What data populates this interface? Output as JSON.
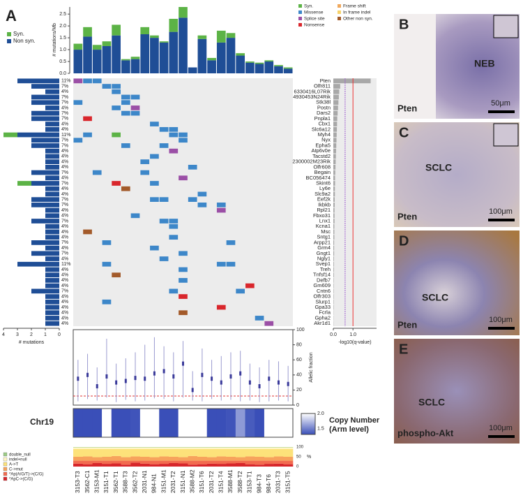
{
  "panelA": {
    "letter": "A",
    "samples": [
      "3153-T3",
      "3562-C1",
      "3153-M1",
      "3151-T1",
      "3562-T1",
      "3588-T3",
      "3562-T2",
      "2031-N1",
      "984-N1",
      "3151-M1",
      "2031-T2",
      "3151-N1",
      "3588-M2",
      "3151-T6",
      "2031-T2",
      "3151-T4",
      "3588-M1",
      "3588-T2",
      "3153-T1",
      "984-T3",
      "984-T6",
      "2031-T3",
      "3151-T5"
    ],
    "rate": {
      "ylabel": "# mutations/Mb",
      "ylim": [
        0,
        2.8
      ],
      "yticks": [
        {
          "value": 0,
          "label": "0.0"
        },
        {
          "value": 0.5,
          "label": "0.5"
        },
        {
          "value": 1,
          "label": "1.0"
        },
        {
          "value": 1.5,
          "label": "1.5"
        },
        {
          "value": 2,
          "label": "2.0"
        },
        {
          "value": 2.5,
          "label": "2.5"
        }
      ],
      "series": [
        {
          "name": "Non syn.",
          "color": "#1f4e96",
          "values": [
            1.0,
            1.55,
            1.0,
            1.15,
            1.6,
            0.55,
            0.6,
            1.65,
            1.5,
            1.3,
            1.75,
            2.35,
            0.25,
            1.45,
            0.55,
            1.3,
            1.5,
            0.75,
            0.45,
            0.4,
            0.5,
            0.3,
            0.2
          ]
        },
        {
          "name": "Syn.",
          "color": "#5cb346",
          "values": [
            0.25,
            0.4,
            0.2,
            0.2,
            0.45,
            0.05,
            0.1,
            0.3,
            0.1,
            0.05,
            0.55,
            0.45,
            0.0,
            0.15,
            0.1,
            0.5,
            0.2,
            0.1,
            0.05,
            0.05,
            0.05,
            0.05,
            0.05
          ]
        }
      ]
    },
    "types": [
      {
        "name": "Syn.",
        "color": "#5cb346"
      },
      {
        "name": "Missense",
        "color": "#3d87c9"
      },
      {
        "name": "Splice site",
        "color": "#9b4fa6"
      },
      {
        "name": "Nonsense",
        "color": "#d9262c"
      },
      {
        "name": "Frame shift",
        "color": "#f0a85c"
      },
      {
        "name": "In frame indel",
        "color": "#f7d36b"
      },
      {
        "name": "Other non syn.",
        "color": "#a35a2a"
      }
    ],
    "genes": [
      {
        "name": "Pten",
        "pct": "11%",
        "count": 3,
        "syn": 0,
        "q": 1.9,
        "cells": [
          [
            0,
            2
          ],
          [
            1,
            1
          ],
          [
            2,
            1
          ]
        ]
      },
      {
        "name": "Olfr811",
        "pct": "7%",
        "count": 2,
        "syn": 0,
        "q": 0.35,
        "cells": [
          [
            3,
            1
          ],
          [
            4,
            1
          ]
        ]
      },
      {
        "name": "6330416L07Rik",
        "pct": "4%",
        "count": 1,
        "syn": 0,
        "q": 0.3,
        "cells": [
          [
            4,
            1
          ]
        ]
      },
      {
        "name": "4930453N24Rik",
        "pct": "7%",
        "count": 2,
        "syn": 0,
        "q": 0.28,
        "cells": [
          [
            5,
            1
          ],
          [
            6,
            1
          ]
        ]
      },
      {
        "name": "Stk38l",
        "pct": "7%",
        "count": 2,
        "syn": 0,
        "q": 0.26,
        "cells": [
          [
            0,
            1
          ],
          [
            5,
            1
          ]
        ]
      },
      {
        "name": "Postn",
        "pct": "4%",
        "count": 1,
        "syn": 0,
        "q": 0.24,
        "cells": [
          [
            4,
            1
          ],
          [
            6,
            2
          ]
        ]
      },
      {
        "name": "Dars2",
        "pct": "7%",
        "count": 2,
        "syn": 0,
        "q": 0.22,
        "cells": [
          [
            5,
            1
          ],
          [
            6,
            1
          ]
        ]
      },
      {
        "name": "Pnpla1",
        "pct": "7%",
        "count": 2,
        "syn": 0,
        "q": 0.2,
        "cells": [
          [
            1,
            3
          ]
        ]
      },
      {
        "name": "Cbx1",
        "pct": "4%",
        "count": 1,
        "syn": 0,
        "q": 0.19,
        "cells": [
          [
            8,
            1
          ]
        ]
      },
      {
        "name": "Slc6a12",
        "pct": "4%",
        "count": 1,
        "syn": 0,
        "q": 0.18,
        "cells": [
          [
            9,
            1
          ],
          [
            10,
            1
          ]
        ]
      },
      {
        "name": "Myh4",
        "pct": "11%",
        "count": 3,
        "syn": 1,
        "q": 0.17,
        "cells": [
          [
            1,
            1
          ],
          [
            4,
            0
          ],
          [
            10,
            1
          ],
          [
            11,
            1
          ]
        ]
      },
      {
        "name": "Nyx",
        "pct": "7%",
        "count": 2,
        "syn": 0,
        "q": 0.16,
        "cells": [
          [
            0,
            1
          ],
          [
            11,
            1
          ]
        ]
      },
      {
        "name": "Epha5",
        "pct": "7%",
        "count": 2,
        "syn": 0,
        "q": 0.15,
        "cells": [
          [
            5,
            1
          ],
          [
            9,
            1
          ]
        ]
      },
      {
        "name": "Atp6v0e",
        "pct": "4%",
        "count": 1,
        "syn": 0,
        "q": 0.14,
        "cells": [
          [
            10,
            2
          ]
        ]
      },
      {
        "name": "Tacstd2",
        "pct": "4%",
        "count": 1,
        "syn": 0,
        "q": 0.13,
        "cells": [
          [
            8,
            1
          ]
        ]
      },
      {
        "name": "2300002M23Rik",
        "pct": "4%",
        "count": 1,
        "syn": 0,
        "q": 0.12,
        "cells": [
          [
            7,
            1
          ]
        ]
      },
      {
        "name": "Olfr608",
        "pct": "4%",
        "count": 1,
        "syn": 0,
        "q": 0.11,
        "cells": [
          [
            12,
            1
          ]
        ]
      },
      {
        "name": "Begain",
        "pct": "7%",
        "count": 2,
        "syn": 0,
        "q": 0.1,
        "cells": [
          [
            2,
            1
          ],
          [
            7,
            1
          ]
        ]
      },
      {
        "name": "BC056474",
        "pct": "4%",
        "count": 1,
        "syn": 0,
        "q": 0.09,
        "cells": [
          [
            11,
            2
          ]
        ]
      },
      {
        "name": "Skint6",
        "pct": "7%",
        "count": 2,
        "syn": 1,
        "q": 0.09,
        "cells": [
          [
            4,
            3
          ],
          [
            8,
            1
          ]
        ]
      },
      {
        "name": "Ly6e",
        "pct": "4%",
        "count": 1,
        "syn": 0,
        "q": 0.08,
        "cells": [
          [
            5,
            6
          ]
        ]
      },
      {
        "name": "Slc9a2",
        "pct": "4%",
        "count": 1,
        "syn": 0,
        "q": 0.08,
        "cells": [
          [
            13,
            1
          ]
        ]
      },
      {
        "name": "Eef2k",
        "pct": "7%",
        "count": 2,
        "syn": 0,
        "q": 0.07,
        "cells": [
          [
            8,
            1
          ],
          [
            9,
            1
          ],
          [
            12,
            1
          ]
        ]
      },
      {
        "name": "Ikbkb",
        "pct": "7%",
        "count": 2,
        "syn": 0,
        "q": 0.07,
        "cells": [
          [
            13,
            1
          ],
          [
            15,
            1
          ]
        ]
      },
      {
        "name": "Rpl21",
        "pct": "4%",
        "count": 1,
        "syn": 0,
        "q": 0.06,
        "cells": [
          [
            15,
            2
          ]
        ]
      },
      {
        "name": "Fbxo31",
        "pct": "4%",
        "count": 1,
        "syn": 0,
        "q": 0.06,
        "cells": [
          [
            6,
            1
          ]
        ]
      },
      {
        "name": "Lnx1",
        "pct": "7%",
        "count": 2,
        "syn": 0,
        "q": 0.06,
        "cells": [
          [
            9,
            1
          ],
          [
            10,
            1
          ]
        ]
      },
      {
        "name": "Kcna1",
        "pct": "4%",
        "count": 1,
        "syn": 0,
        "q": 0.05,
        "cells": [
          [
            10,
            1
          ]
        ]
      },
      {
        "name": "Msc",
        "pct": "4%",
        "count": 1,
        "syn": 0,
        "q": 0.05,
        "cells": [
          [
            1,
            6
          ]
        ]
      },
      {
        "name": "Sntg1",
        "pct": "4%",
        "count": 1,
        "syn": 0,
        "q": 0.05,
        "cells": [
          [
            10,
            1
          ]
        ]
      },
      {
        "name": "Arpp21",
        "pct": "7%",
        "count": 2,
        "syn": 0,
        "q": 0.04,
        "cells": [
          [
            3,
            1
          ],
          [
            16,
            1
          ]
        ]
      },
      {
        "name": "Grm4",
        "pct": "4%",
        "count": 1,
        "syn": 0,
        "q": 0.04,
        "cells": [
          [
            8,
            1
          ]
        ]
      },
      {
        "name": "Gngt1",
        "pct": "7%",
        "count": 2,
        "syn": 0,
        "q": 0.04,
        "cells": [
          [
            11,
            1
          ]
        ]
      },
      {
        "name": "Ngly1",
        "pct": "4%",
        "count": 1,
        "syn": 0,
        "q": 0.03,
        "cells": [
          [
            9,
            1
          ]
        ]
      },
      {
        "name": "Svep1",
        "pct": "11%",
        "count": 3,
        "syn": 0,
        "q": 0.03,
        "cells": [
          [
            3,
            1
          ],
          [
            15,
            1
          ],
          [
            16,
            1
          ]
        ]
      },
      {
        "name": "Treh",
        "pct": "4%",
        "count": 1,
        "syn": 0,
        "q": 0.03,
        "cells": [
          [
            11,
            1
          ]
        ]
      },
      {
        "name": "Tnfsf14",
        "pct": "4%",
        "count": 1,
        "syn": 0,
        "q": 0.03,
        "cells": [
          [
            4,
            6
          ]
        ]
      },
      {
        "name": "Defb7",
        "pct": "4%",
        "count": 1,
        "syn": 0,
        "q": 0.02,
        "cells": [
          [
            11,
            1
          ]
        ]
      },
      {
        "name": "Gm609",
        "pct": "4%",
        "count": 1,
        "syn": 0,
        "q": 0.02,
        "cells": [
          [
            18,
            3
          ]
        ]
      },
      {
        "name": "Cntn6",
        "pct": "7%",
        "count": 2,
        "syn": 0,
        "q": 0.02,
        "cells": [
          [
            10,
            1
          ],
          [
            17,
            1
          ]
        ]
      },
      {
        "name": "Olfr303",
        "pct": "4%",
        "count": 1,
        "syn": 0,
        "q": 0.02,
        "cells": [
          [
            11,
            3
          ]
        ]
      },
      {
        "name": "Slurp1",
        "pct": "4%",
        "count": 1,
        "syn": 0,
        "q": 0.02,
        "cells": [
          [
            3,
            1
          ]
        ]
      },
      {
        "name": "Gpa33",
        "pct": "4%",
        "count": 1,
        "syn": 0,
        "q": 0.02,
        "cells": [
          [
            15,
            3
          ]
        ]
      },
      {
        "name": "Fcrla",
        "pct": "4%",
        "count": 1,
        "syn": 0,
        "q": 0.01,
        "cells": [
          [
            11,
            6
          ]
        ]
      },
      {
        "name": "Gpha2",
        "pct": "4%",
        "count": 1,
        "syn": 0,
        "q": 0.01,
        "cells": [
          [
            19,
            1
          ]
        ]
      },
      {
        "name": "Akr1d1",
        "pct": "4%",
        "count": 1,
        "syn": 0,
        "q": 0.01,
        "cells": [
          [
            20,
            2
          ]
        ]
      }
    ],
    "left_axis": {
      "label": "# mutations",
      "xlim": [
        0,
        4
      ],
      "xticks": [
        4,
        3,
        2,
        1,
        0
      ]
    },
    "q_axis": {
      "label": "-log10(q-value)",
      "xlim": [
        0,
        2.2
      ],
      "xticks": [
        {
          "value": 0,
          "label": "0.0"
        },
        {
          "value": 1,
          "label": "1.0"
        }
      ],
      "thresholds": [
        0.6,
        1.0
      ]
    },
    "allelic": {
      "label": "Allelic fraction",
      "ylim": [
        0,
        100
      ],
      "yticks": [
        0,
        20,
        40,
        60,
        80,
        100
      ],
      "threshold": 12,
      "low": [
        5,
        8,
        6,
        10,
        4,
        7,
        5,
        6,
        9,
        8,
        5,
        10,
        6,
        5,
        8,
        6,
        7,
        5,
        6,
        4,
        5,
        6,
        5
      ],
      "median": [
        35,
        40,
        25,
        38,
        30,
        32,
        36,
        35,
        42,
        45,
        38,
        55,
        20,
        40,
        35,
        30,
        38,
        42,
        30,
        25,
        35,
        30,
        28
      ],
      "high": [
        60,
        68,
        50,
        88,
        55,
        62,
        70,
        80,
        90,
        78,
        70,
        85,
        45,
        75,
        60,
        65,
        70,
        72,
        55,
        50,
        60,
        58,
        52
      ]
    },
    "copy": {
      "label": "Chr19",
      "legend": [
        "Copy Number",
        "(Arm level)"
      ],
      "lim": [
        1.3,
        2.0
      ],
      "ticks": [
        {
          "value": 2,
          "label": "2.0"
        },
        {
          "value": 1.5,
          "label": "1.5"
        }
      ],
      "values": [
        1.3,
        1.3,
        1.3,
        2.0,
        1.3,
        1.3,
        1.32,
        2.0,
        2.0,
        1.3,
        1.3,
        2.0,
        2.0,
        2.0,
        1.3,
        1.3,
        1.32,
        1.6,
        1.35,
        1.3,
        2.0,
        2.0,
        2.0
      ]
    },
    "spectrum": {
      "unit": "%",
      "yticks": [
        0,
        50,
        100
      ],
      "series": [
        {
          "name": "*ApC->(C/G)",
          "color": "#d7262b",
          "values": [
            15,
            12,
            18,
            14,
            16,
            10,
            20,
            15,
            12,
            14,
            18,
            16,
            10,
            12,
            15,
            14,
            16,
            18,
            12,
            10,
            14,
            15,
            12
          ]
        },
        {
          "name": "*Ap(A/G/T)->(C/G)",
          "color": "#f26b4f",
          "values": [
            15,
            18,
            12,
            16,
            14,
            20,
            10,
            15,
            18,
            16,
            12,
            14,
            20,
            18,
            15,
            16,
            14,
            12,
            18,
            20,
            16,
            15,
            18
          ]
        },
        {
          "name": "C->mut",
          "color": "#f7a35c",
          "values": [
            20,
            22,
            18,
            20,
            24,
            18,
            22,
            20,
            18,
            22,
            20,
            18,
            24,
            20,
            18,
            22,
            20,
            18,
            22,
            20,
            18,
            22,
            20
          ]
        },
        {
          "name": "A->T",
          "color": "#fde27a",
          "values": [
            40,
            38,
            42,
            40,
            36,
            42,
            38,
            40,
            42,
            38,
            40,
            42,
            36,
            40,
            42,
            38,
            40,
            42,
            38,
            40,
            42,
            38,
            40
          ]
        },
        {
          "name": "indel+null",
          "color": "#fff6c4",
          "values": [
            8,
            8,
            8,
            8,
            8,
            8,
            8,
            8,
            8,
            8,
            8,
            8,
            8,
            8,
            8,
            8,
            8,
            8,
            8,
            8,
            8,
            8,
            8
          ]
        },
        {
          "name": "double_null",
          "color": "#9ccb86",
          "values": [
            2,
            2,
            2,
            2,
            2,
            2,
            2,
            2,
            2,
            2,
            2,
            2,
            2,
            2,
            2,
            2,
            2,
            2,
            2,
            2,
            2,
            2,
            2
          ]
        }
      ]
    }
  },
  "panels": [
    {
      "letter": "B",
      "labels": [
        "NEB"
      ],
      "stain": "Pten",
      "scale": "50μm"
    },
    {
      "letter": "C",
      "labels": [
        "SCLC"
      ],
      "stain": "Pten",
      "scale": "100μm"
    },
    {
      "letter": "D",
      "labels": [
        "SCLC"
      ],
      "stain": "Pten",
      "scale": "100μm"
    },
    {
      "letter": "E",
      "labels": [
        "SCLC"
      ],
      "stain": "phospho-Akt",
      "scale": "100μm"
    }
  ]
}
